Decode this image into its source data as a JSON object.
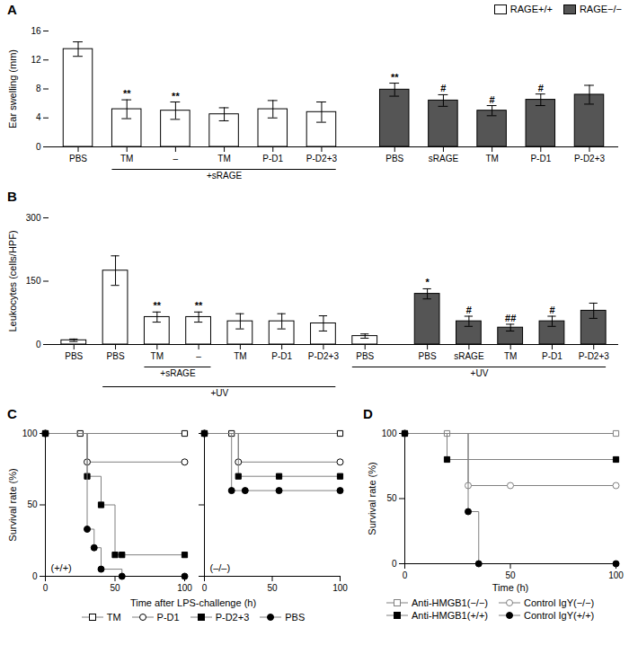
{
  "chart_data": [
    {
      "type": "bar",
      "title": "A",
      "ylabel": "Ear swelling (mm)",
      "ylim": [
        0,
        16
      ],
      "yticks": [
        0,
        4,
        8,
        12,
        16
      ],
      "categories": [
        "PBS",
        "TM",
        "–",
        "TM",
        "P-D1",
        "P-D2+3",
        "PBS",
        "sRAGE",
        "TM",
        "P-D1",
        "P-D2+3"
      ],
      "series": [
        {
          "name": "RAGE+/+",
          "color": "#ffffff",
          "values": [
            13.5,
            5.2,
            5.0,
            4.5,
            5.2,
            4.8,
            null,
            null,
            null,
            null,
            null
          ],
          "errors": [
            1.0,
            1.3,
            1.2,
            0.9,
            1.2,
            1.4,
            null,
            null,
            null,
            null,
            null
          ],
          "stars": [
            null,
            "**",
            "**",
            null,
            null,
            null,
            null,
            null,
            null,
            null,
            null
          ]
        },
        {
          "name": "RAGE−/−",
          "color": "#555555",
          "values": [
            null,
            null,
            null,
            null,
            null,
            null,
            7.9,
            6.4,
            5.0,
            6.5,
            7.2
          ],
          "errors": [
            null,
            null,
            null,
            null,
            null,
            null,
            0.9,
            0.8,
            0.7,
            0.8,
            1.3
          ],
          "stars": [
            null,
            null,
            null,
            null,
            null,
            null,
            "**",
            "#",
            "#",
            "#",
            null
          ]
        }
      ],
      "annotations": [
        {
          "text": "+sRAGE",
          "start": 1,
          "end": 5
        }
      ],
      "legend": "top"
    },
    {
      "type": "bar",
      "title": "B",
      "ylabel": "Leukocytes (cells/HPF)",
      "ylim": [
        0,
        300
      ],
      "yticks": [
        0,
        150,
        300
      ],
      "categories": [
        "PBS",
        "PBS",
        "TM",
        "–",
        "TM",
        "P-D1",
        "P-D2+3",
        "PBS",
        "PBS",
        "sRAGE",
        "TM",
        "P-D1",
        "P-D2+3"
      ],
      "series": [
        {
          "color": "#ffffff",
          "values": [
            10,
            175,
            65,
            65,
            55,
            55,
            50,
            20,
            null,
            null,
            null,
            null,
            null
          ],
          "errors": [
            3,
            35,
            12,
            12,
            18,
            18,
            18,
            5,
            null,
            null,
            null,
            null,
            null
          ],
          "stars": [
            null,
            null,
            "**",
            "**",
            null,
            null,
            null,
            null,
            null,
            null,
            null,
            null,
            null
          ]
        },
        {
          "color": "#555555",
          "values": [
            null,
            null,
            null,
            null,
            null,
            null,
            null,
            null,
            120,
            55,
            40,
            55,
            80
          ],
          "errors": [
            null,
            null,
            null,
            null,
            null,
            null,
            null,
            null,
            12,
            12,
            8,
            12,
            18
          ],
          "stars": [
            null,
            null,
            null,
            null,
            null,
            null,
            null,
            null,
            "*",
            "#",
            "##",
            "#",
            null
          ]
        }
      ],
      "annotations": [
        {
          "text": "+sRAGE",
          "start": 2,
          "end": 3
        },
        {
          "text": "+UV",
          "start": 1,
          "end": 6
        },
        {
          "text": "+UV",
          "start": 7,
          "end": 12
        }
      ]
    },
    {
      "type": "line",
      "title": "C",
      "xlabel": "Time after LPS-challenge (h)",
      "ylabel": "Survival rate (%)",
      "xlim": [
        0,
        100
      ],
      "ylim": [
        0,
        100
      ],
      "xticks": [
        0,
        50,
        100
      ],
      "yticks": [
        0,
        50,
        100
      ],
      "line_style": "steps",
      "annotations": [
        {
          "text": "(+/+)"
        }
      ],
      "series": [
        {
          "name": "TM",
          "marker": "square-open",
          "color": "black",
          "x": [
            0,
            25,
            100
          ],
          "values": [
            100,
            100,
            100
          ]
        },
        {
          "name": "P-D1",
          "marker": "circle-open",
          "color": "black",
          "x": [
            0,
            30,
            100
          ],
          "values": [
            100,
            80,
            80
          ]
        },
        {
          "name": "P-D2+3",
          "marker": "square",
          "color": "black",
          "x": [
            0,
            30,
            40,
            50,
            55,
            100
          ],
          "values": [
            100,
            70,
            50,
            15,
            15,
            15
          ]
        },
        {
          "name": "PBS",
          "marker": "circle",
          "color": "black",
          "x": [
            0,
            30,
            35,
            40,
            55,
            100
          ],
          "values": [
            100,
            33,
            20,
            5,
            0,
            0
          ]
        }
      ]
    },
    {
      "type": "line",
      "xlim": [
        0,
        100
      ],
      "ylim": [
        0,
        100
      ],
      "xticks": [
        0,
        50,
        100
      ],
      "yticks": [
        0,
        50,
        100
      ],
      "line_style": "steps",
      "tick_labels": "x",
      "legend": "bottom",
      "annotations": [
        {
          "text": "(–/–)"
        }
      ],
      "series": [
        {
          "name": "TM",
          "marker": "square-open",
          "color": "black",
          "x": [
            0,
            20,
            100
          ],
          "values": [
            100,
            100,
            100
          ]
        },
        {
          "name": "P-D1",
          "marker": "circle-open",
          "color": "black",
          "x": [
            0,
            25,
            100
          ],
          "values": [
            100,
            80,
            80
          ]
        },
        {
          "name": "P-D2+3",
          "marker": "square",
          "color": "black",
          "x": [
            0,
            25,
            55,
            100
          ],
          "values": [
            100,
            70,
            70,
            70
          ]
        },
        {
          "name": "PBS",
          "marker": "circle",
          "color": "black",
          "x": [
            0,
            20,
            30,
            55,
            100
          ],
          "values": [
            100,
            60,
            60,
            60,
            60
          ]
        }
      ]
    },
    {
      "type": "line",
      "title": "D",
      "xlabel": "Time (h)",
      "ylabel": "Survival rate (%)",
      "xlim": [
        0,
        100
      ],
      "ylim": [
        0,
        100
      ],
      "xticks": [
        0,
        50,
        100
      ],
      "yticks": [
        0,
        50,
        100
      ],
      "line_style": "steps",
      "legend": "bottom",
      "series": [
        {
          "name": "Anti-HMGB1(−/−)",
          "marker": "square-open",
          "color": "gray",
          "x": [
            0,
            20,
            100
          ],
          "values": [
            100,
            100,
            100
          ]
        },
        {
          "name": "Control IgY(−/−)",
          "marker": "circle-open",
          "color": "gray",
          "x": [
            0,
            30,
            50,
            100
          ],
          "values": [
            100,
            60,
            60,
            60
          ]
        },
        {
          "name": "Anti-HMGB1(+/+)",
          "marker": "square",
          "color": "black",
          "x": [
            0,
            20,
            100
          ],
          "values": [
            100,
            80,
            80
          ]
        },
        {
          "name": "Control IgY(+/+)",
          "marker": "circle",
          "color": "black",
          "x": [
            0,
            30,
            35,
            100
          ],
          "values": [
            100,
            40,
            0,
            0
          ]
        }
      ]
    }
  ]
}
